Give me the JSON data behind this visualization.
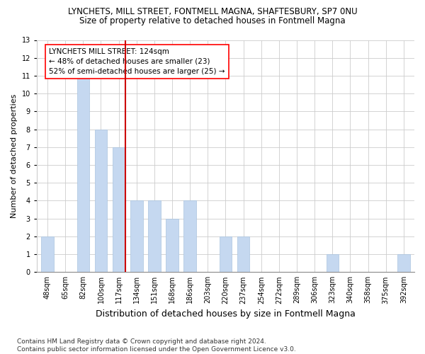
{
  "title": "LYNCHETS, MILL STREET, FONTMELL MAGNA, SHAFTESBURY, SP7 0NU",
  "subtitle": "Size of property relative to detached houses in Fontmell Magna",
  "xlabel": "Distribution of detached houses by size in Fontmell Magna",
  "ylabel": "Number of detached properties",
  "categories": [
    "48sqm",
    "65sqm",
    "82sqm",
    "100sqm",
    "117sqm",
    "134sqm",
    "151sqm",
    "168sqm",
    "186sqm",
    "203sqm",
    "220sqm",
    "237sqm",
    "254sqm",
    "272sqm",
    "289sqm",
    "306sqm",
    "323sqm",
    "340sqm",
    "358sqm",
    "375sqm",
    "392sqm"
  ],
  "values": [
    2,
    0,
    11,
    8,
    7,
    4,
    4,
    3,
    4,
    0,
    2,
    2,
    0,
    0,
    0,
    0,
    1,
    0,
    0,
    0,
    1
  ],
  "bar_color": "#c5d8f0",
  "bar_edgecolor": "#aac4e0",
  "vline_color": "#cc0000",
  "vline_label": "LYNCHETS MILL STREET: 124sqm",
  "annotation_line2": "← 48% of detached houses are smaller (23)",
  "annotation_line3": "52% of semi-detached houses are larger (25) →",
  "ylim": [
    0,
    13
  ],
  "yticks": [
    0,
    1,
    2,
    3,
    4,
    5,
    6,
    7,
    8,
    9,
    10,
    11,
    12,
    13
  ],
  "grid_color": "#cccccc",
  "background_color": "#ffffff",
  "footer_line1": "Contains HM Land Registry data © Crown copyright and database right 2024.",
  "footer_line2": "Contains public sector information licensed under the Open Government Licence v3.0.",
  "title_fontsize": 8.5,
  "subtitle_fontsize": 8.5,
  "xlabel_fontsize": 9,
  "ylabel_fontsize": 8,
  "tick_fontsize": 7,
  "annotation_fontsize": 7.5,
  "footer_fontsize": 6.5
}
